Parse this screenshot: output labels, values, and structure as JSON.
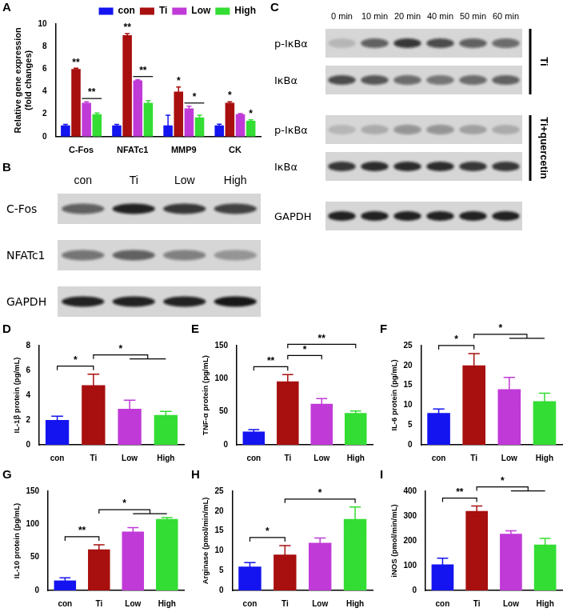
{
  "chart_data": [
    {
      "panel": "A",
      "type": "bar",
      "y_label": [
        "Relative gene expression",
        "(fold changes)"
      ],
      "categories": [
        "C-Fos",
        "NFATc1",
        "MMP9",
        "CK"
      ],
      "series": [
        {
          "name": "con",
          "color": "#1414f0",
          "values": [
            1,
            1,
            1,
            1
          ],
          "errors": [
            0.08,
            0.08,
            0.9,
            0.1
          ]
        },
        {
          "name": "Ti",
          "color": "#a80f0f",
          "values": [
            6,
            9,
            4,
            3
          ],
          "errors": [
            0.08,
            0.15,
            0.4,
            0.1
          ]
        },
        {
          "name": "Low",
          "color": "#c03ad8",
          "values": [
            3,
            5,
            2.5,
            2
          ],
          "errors": [
            0.1,
            0.05,
            0.2,
            0.05
          ]
        },
        {
          "name": "High",
          "color": "#33dd33",
          "values": [
            2,
            3,
            1.7,
            1.4
          ],
          "errors": [
            0.1,
            0.2,
            0.2,
            0.1
          ]
        }
      ],
      "ylim": [
        0,
        10
      ],
      "yticks": [
        0,
        2,
        4,
        6,
        8,
        10
      ],
      "grid": false,
      "legend": "top",
      "annotations": [
        {
          "category": "C-Fos",
          "series": [
            "Ti"
          ],
          "text": "**"
        },
        {
          "category": "C-Fos",
          "series": [
            "Low",
            "High"
          ],
          "text": "**"
        },
        {
          "category": "NFATc1",
          "series": [
            "Ti"
          ],
          "text": "**"
        },
        {
          "category": "NFATc1",
          "series": [
            "Low",
            "High"
          ],
          "text": "**"
        },
        {
          "category": "MMP9",
          "series": [
            "Ti"
          ],
          "text": "*"
        },
        {
          "category": "MMP9",
          "series": [
            "Low",
            "High"
          ],
          "text": "*"
        },
        {
          "category": "CK",
          "series": [
            "Ti"
          ],
          "text": "*"
        },
        {
          "category": "CK",
          "series": [
            "High"
          ],
          "text": "*"
        }
      ]
    },
    {
      "panel": "D",
      "type": "bar",
      "y_label": "IL-1β protein (pg/mL)",
      "categories": [
        "con",
        "Ti",
        "Low",
        "High"
      ],
      "values": [
        2.0,
        4.8,
        2.9,
        2.4
      ],
      "errors": [
        0.3,
        0.9,
        0.7,
        0.3
      ],
      "colors": [
        "#1414f0",
        "#a80f0f",
        "#c03ad8",
        "#33dd33"
      ],
      "ylim": [
        0,
        8
      ],
      "yticks": [
        0,
        2,
        4,
        6,
        8
      ],
      "grid": false,
      "comparisons": [
        {
          "from": "con",
          "to": [
            "Ti"
          ],
          "text": "*"
        },
        {
          "from": "Ti",
          "to": [
            "Low",
            "High"
          ],
          "text": "*"
        }
      ]
    },
    {
      "panel": "E",
      "type": "bar",
      "y_label": "TNF-α protein (pg/mL)",
      "categories": [
        "con",
        "Ti",
        "Low",
        "High"
      ],
      "values": [
        20,
        96,
        62,
        48
      ],
      "errors": [
        3,
        10,
        8,
        3
      ],
      "colors": [
        "#1414f0",
        "#a80f0f",
        "#c03ad8",
        "#33dd33"
      ],
      "ylim": [
        0,
        150
      ],
      "yticks": [
        0,
        50,
        100,
        150
      ],
      "grid": false,
      "comparisons": [
        {
          "from": "con",
          "to": [
            "Ti"
          ],
          "text": "**"
        },
        {
          "from": "Ti",
          "to": [
            "Low"
          ],
          "text": "*"
        },
        {
          "from": "Ti",
          "to": [
            "High"
          ],
          "text": "**"
        }
      ]
    },
    {
      "panel": "F",
      "type": "bar",
      "y_label": "IL-6 protein (pg/mL)",
      "categories": [
        "con",
        "Ti",
        "Low",
        "High"
      ],
      "values": [
        8,
        20,
        14,
        11
      ],
      "errors": [
        1,
        3,
        3,
        2
      ],
      "colors": [
        "#1414f0",
        "#a80f0f",
        "#c03ad8",
        "#33dd33"
      ],
      "ylim": [
        0,
        25
      ],
      "yticks": [
        0,
        5,
        10,
        15,
        20,
        25
      ],
      "grid": false,
      "comparisons": [
        {
          "from": "con",
          "to": [
            "Ti"
          ],
          "text": "*"
        },
        {
          "from": "Ti",
          "to": [
            "Low",
            "High"
          ],
          "text": "*"
        }
      ]
    },
    {
      "panel": "G",
      "type": "bar",
      "y_label": "IL-10 protein (pg/mL)",
      "categories": [
        "con",
        "Ti",
        "Low",
        "High"
      ],
      "values": [
        15,
        62,
        89,
        108
      ],
      "errors": [
        4,
        7,
        6,
        2
      ],
      "colors": [
        "#1414f0",
        "#a80f0f",
        "#c03ad8",
        "#33dd33"
      ],
      "ylim": [
        0,
        150
      ],
      "yticks": [
        0,
        50,
        100,
        150
      ],
      "grid": false,
      "comparisons": [
        {
          "from": "con",
          "to": [
            "Ti"
          ],
          "text": "**"
        },
        {
          "from": "Ti",
          "to": [
            "Low",
            "High"
          ],
          "text": "*"
        }
      ]
    },
    {
      "panel": "H",
      "type": "bar",
      "y_label": "Arginase (pmol/min/mL)",
      "categories": [
        "con",
        "Ti",
        "Low",
        "High"
      ],
      "values": [
        6,
        9,
        12,
        18
      ],
      "errors": [
        1,
        2.3,
        1.2,
        3
      ],
      "colors": [
        "#1414f0",
        "#a80f0f",
        "#c03ad8",
        "#33dd33"
      ],
      "ylim": [
        0,
        25
      ],
      "yticks": [
        0,
        5,
        10,
        15,
        20,
        25
      ],
      "grid": false,
      "comparisons": [
        {
          "from": "con",
          "to": [
            "Ti"
          ],
          "text": "*"
        },
        {
          "from": "Ti",
          "to": [
            "High"
          ],
          "text": "*"
        }
      ]
    },
    {
      "panel": "I",
      "type": "bar",
      "y_label": "iNOS (pmol/min/mL)",
      "categories": [
        "con",
        "Ti",
        "Low",
        "High"
      ],
      "values": [
        105,
        320,
        228,
        185
      ],
      "errors": [
        25,
        20,
        12,
        25
      ],
      "colors": [
        "#1414f0",
        "#a80f0f",
        "#c03ad8",
        "#33dd33"
      ],
      "ylim": [
        0,
        400
      ],
      "yticks": [
        0,
        100,
        200,
        300,
        400
      ],
      "grid": false,
      "comparisons": [
        {
          "from": "con",
          "to": [
            "Ti"
          ],
          "text": "**"
        },
        {
          "from": "Ti",
          "to": [
            "Low",
            "High"
          ],
          "text": "*"
        }
      ]
    }
  ],
  "blots": [
    {
      "panel": "B",
      "columns": [
        "con",
        "Ti",
        "Low",
        "High"
      ],
      "rows": [
        {
          "label": "C-Fos",
          "intensity": [
            0.6,
            0.9,
            0.8,
            0.75
          ]
        },
        {
          "label": "NFATc1",
          "intensity": [
            0.5,
            0.6,
            0.45,
            0.35
          ]
        },
        {
          "label": "GAPDH",
          "intensity": [
            0.9,
            0.9,
            0.9,
            0.95
          ]
        }
      ]
    },
    {
      "panel": "C",
      "columns": [
        "0 min",
        "10 min",
        "20 min",
        "40 min",
        "50 min",
        "60 min"
      ],
      "rows": [
        {
          "label": "p-IκBα",
          "group": "Ti",
          "intensity": [
            0.15,
            0.6,
            0.8,
            0.7,
            0.6,
            0.55
          ]
        },
        {
          "label": "IκBα",
          "group": "Ti",
          "intensity": [
            0.7,
            0.65,
            0.55,
            0.5,
            0.55,
            0.6
          ]
        },
        {
          "label": "p-IκBα",
          "group": "Ti+quercetin",
          "intensity": [
            0.15,
            0.2,
            0.35,
            0.35,
            0.25,
            0.2
          ]
        },
        {
          "label": "IκBα",
          "group": "Ti+quercetin",
          "intensity": [
            0.8,
            0.85,
            0.85,
            0.85,
            0.8,
            0.8
          ]
        },
        {
          "label": "GAPDH",
          "intensity": [
            0.9,
            0.9,
            0.9,
            0.9,
            0.9,
            0.9
          ]
        }
      ]
    }
  ]
}
